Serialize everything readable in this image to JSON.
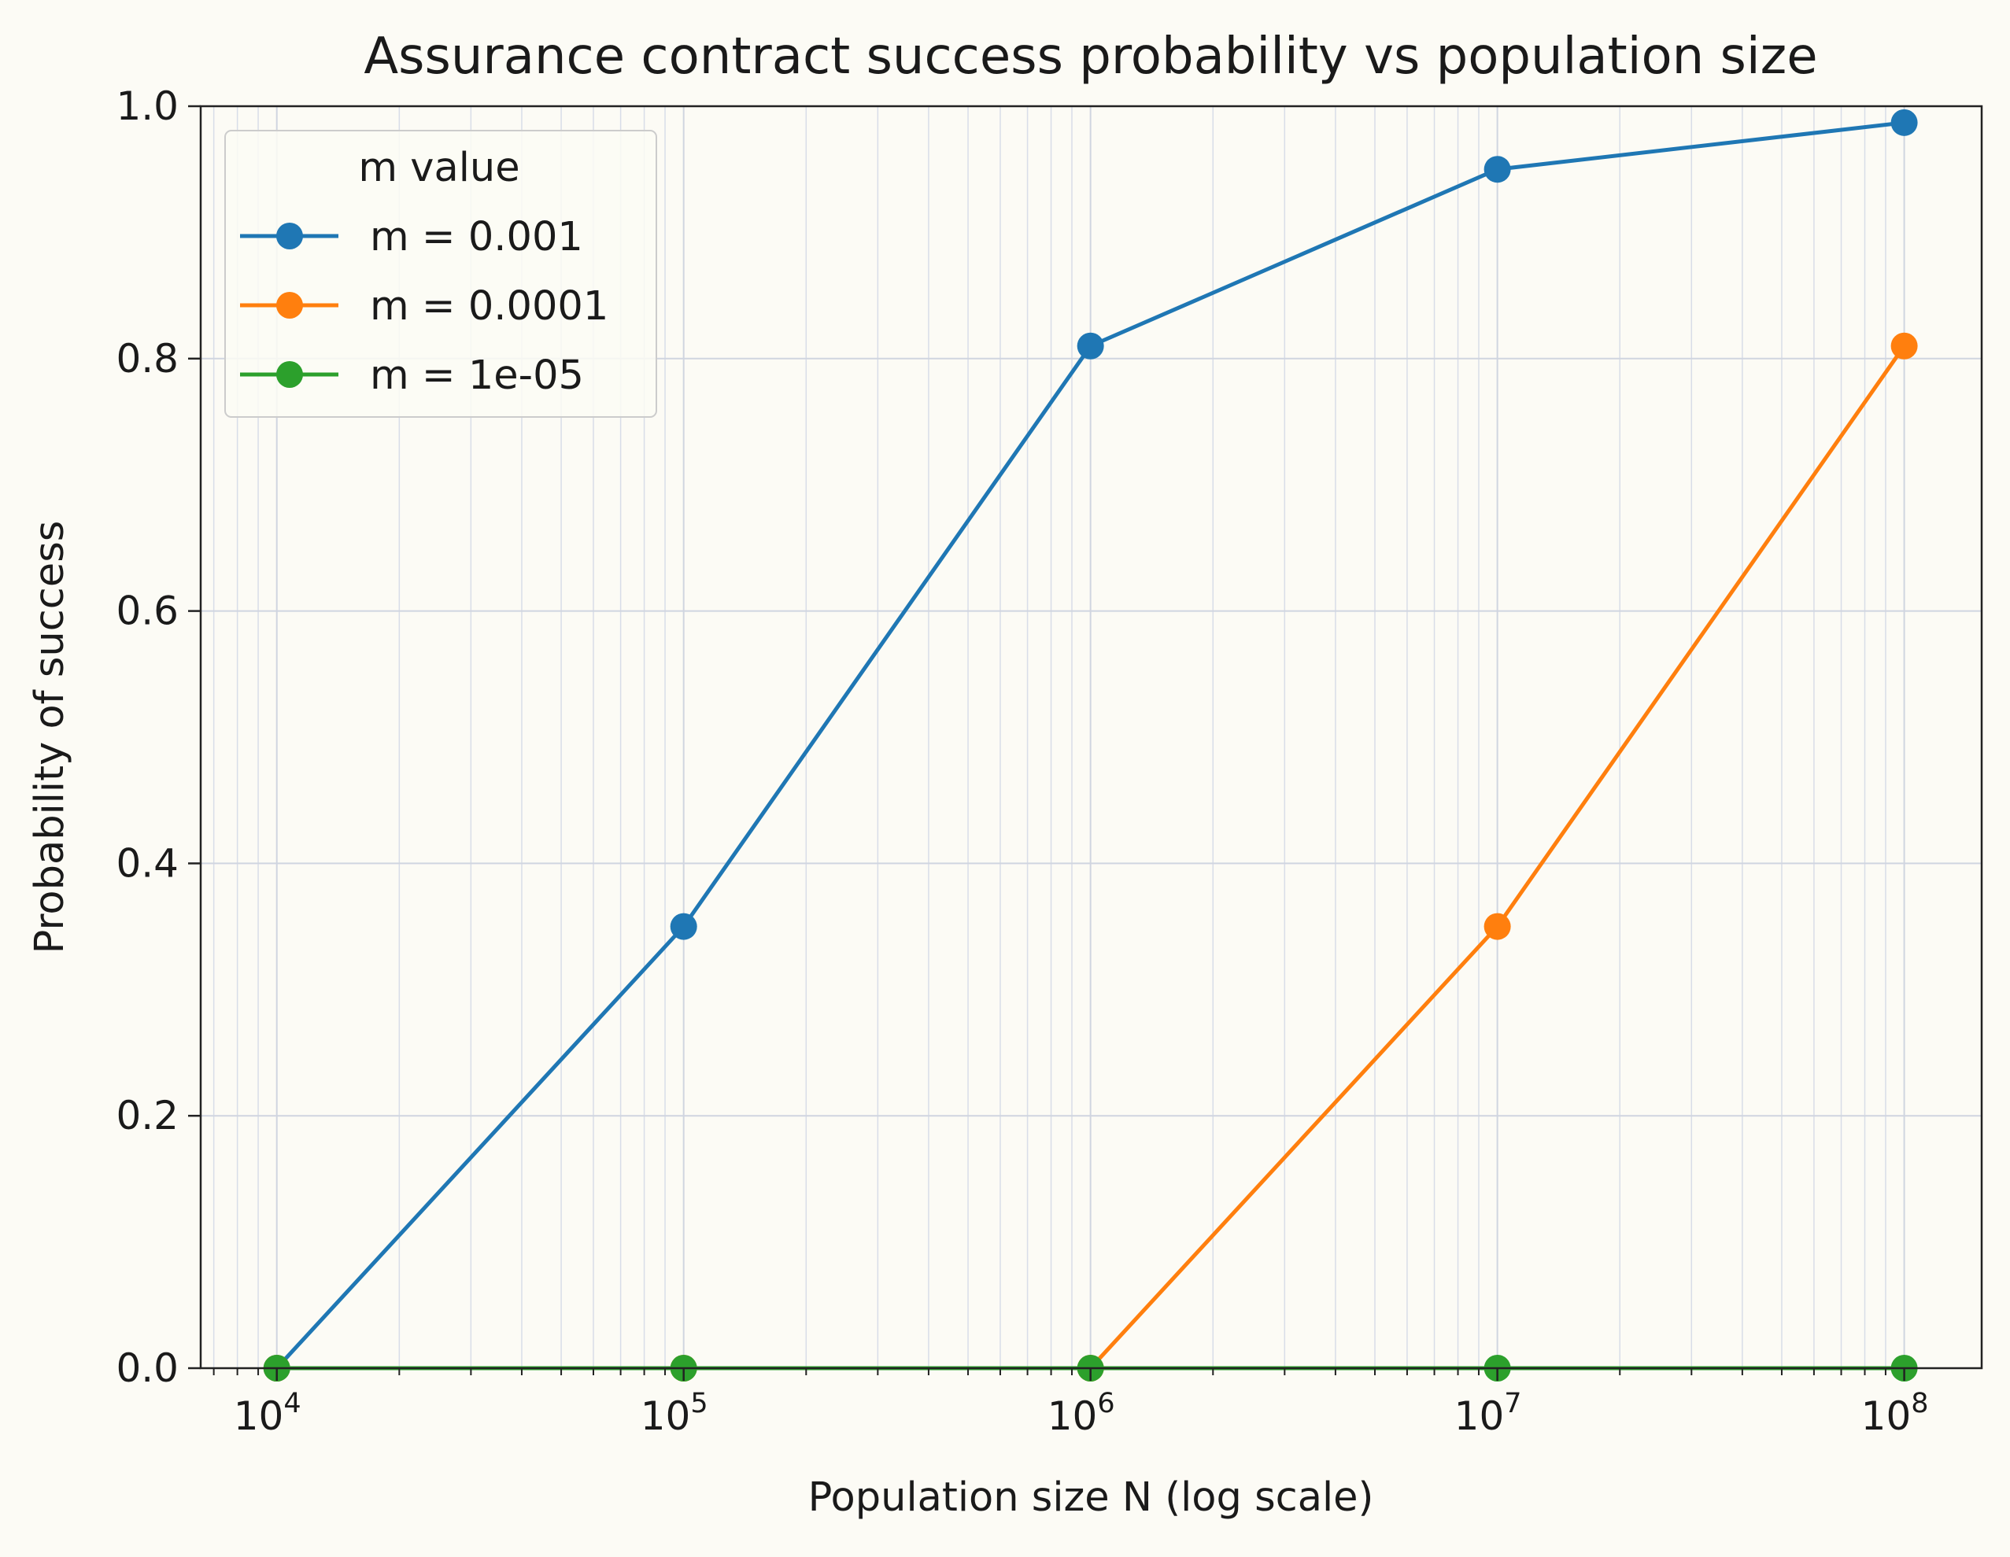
{
  "chart_data": {
    "type": "line",
    "title": "Assurance contract success probability vs population size",
    "xlabel": "Population size N (log scale)",
    "ylabel": "Probability of success",
    "x_scale": "log",
    "xlim": [
      6500,
      155000000
    ],
    "ylim": [
      0,
      1
    ],
    "x": [
      10000,
      100000,
      1000000,
      10000000,
      100000000
    ],
    "x_ticks": [
      {
        "value": 10000,
        "base": "10",
        "exp": "4"
      },
      {
        "value": 100000,
        "base": "10",
        "exp": "5"
      },
      {
        "value": 1000000,
        "base": "10",
        "exp": "6"
      },
      {
        "value": 10000000,
        "base": "10",
        "exp": "7"
      },
      {
        "value": 100000000,
        "base": "10",
        "exp": "8"
      }
    ],
    "y_ticks": [
      {
        "value": 0,
        "label": "0.0"
      },
      {
        "value": 0.2,
        "label": "0.2"
      },
      {
        "value": 0.4,
        "label": "0.4"
      },
      {
        "value": 0.6,
        "label": "0.6"
      },
      {
        "value": 0.8,
        "label": "0.8"
      },
      {
        "value": 1.0,
        "label": "1.0"
      }
    ],
    "grid": true,
    "legend": {
      "title": "m value",
      "placement": "top-left"
    },
    "series": [
      {
        "name": "m = 0.001",
        "color": "#1f77b4",
        "values": [
          0.0,
          0.35,
          0.81,
          0.95,
          0.987
        ]
      },
      {
        "name": "m = 0.0001",
        "color": "#ff7f0e",
        "values": [
          0.0,
          0.0,
          0.0,
          0.35,
          0.81
        ]
      },
      {
        "name": "m = 1e-05",
        "color": "#2ca02c",
        "values": [
          0.0,
          0.0,
          0.0,
          0.0,
          0.0
        ]
      }
    ]
  }
}
